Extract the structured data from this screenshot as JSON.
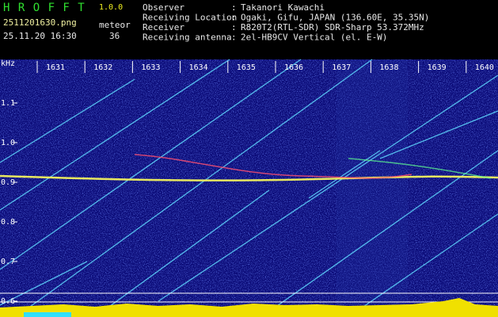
{
  "header": {
    "app_name": "H R O F F T",
    "version": "1.0.0",
    "file_name": "2511201630.png",
    "date_time": "25.11.20 16:30",
    "count_label": "meteor",
    "count": 36,
    "separator": ":",
    "fields": [
      {
        "label": "Observer",
        "value": "Takanori Kawachi"
      },
      {
        "label": "Receiving Location",
        "value": "Ogaki, Gifu, JAPAN (136.60E, 35.35N)"
      },
      {
        "label": "Receiver",
        "value": "R820T2(RTL-SDR) SDR-Sharp 53.372MHz"
      },
      {
        "label": "Receiving antenna",
        "value": "2el-HB9CV Vertical (el. E-W)"
      }
    ]
  },
  "axis": {
    "unit": "kHz",
    "frequency_labels": [
      "1.1",
      "1.0",
      "0.9",
      "0.8",
      "0.7",
      "0.6"
    ],
    "time_labels": [
      "1631",
      "1632",
      "1633",
      "1634",
      "1635",
      "1636",
      "1637",
      "1638",
      "1639",
      "1640"
    ]
  }
}
